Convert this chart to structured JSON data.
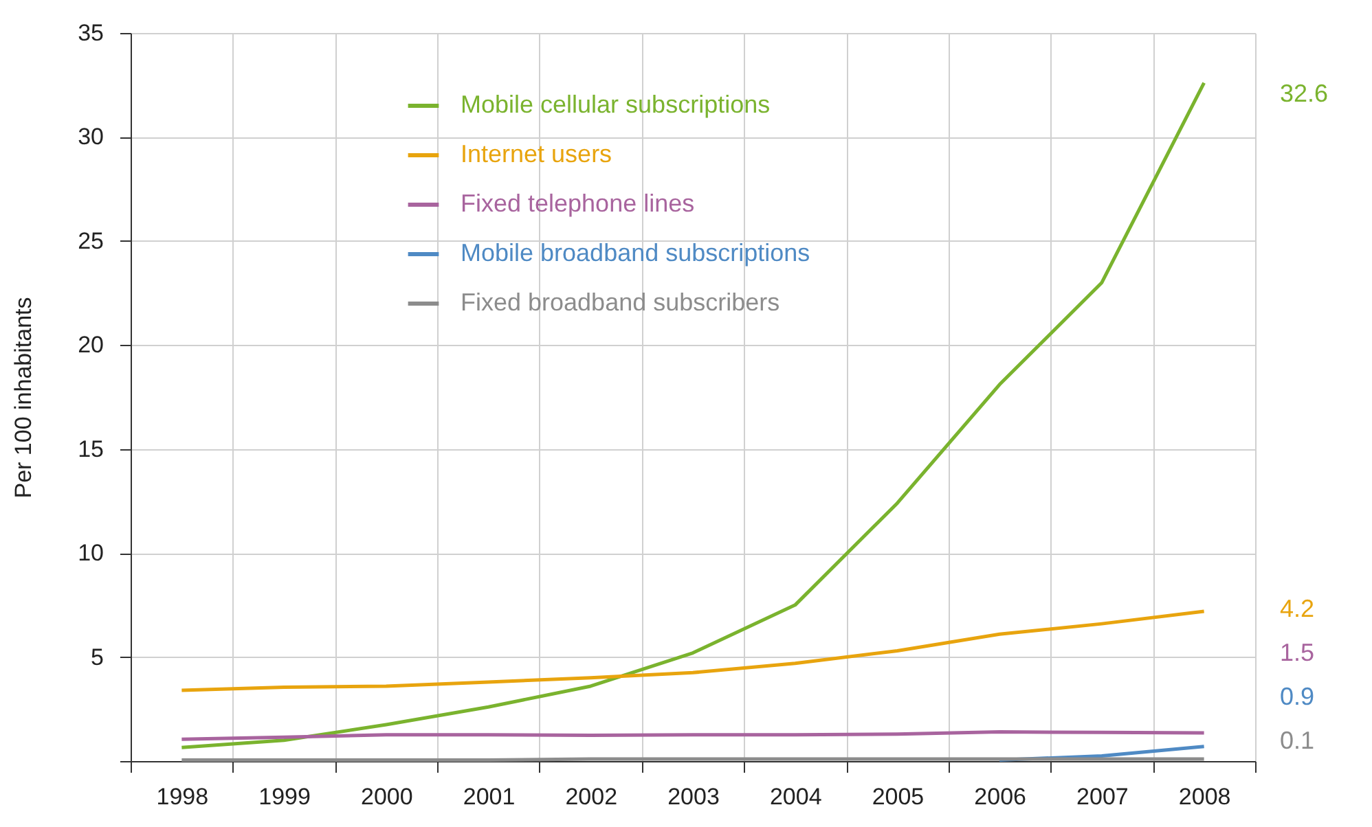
{
  "chart_data": {
    "type": "line",
    "ylabel": "Per 100 inhabitants",
    "categories": [
      "1998",
      "1999",
      "2000",
      "2001",
      "2002",
      "2003",
      "2004",
      "2005",
      "2006",
      "2007",
      "2008"
    ],
    "series": [
      {
        "name": "Mobile cellular subscriptions",
        "color": "#7ab32e",
        "values": [
          0.65,
          1.0,
          1.75,
          2.6,
          3.6,
          5.2,
          7.5,
          12.4,
          18.1,
          23.0,
          32.6
        ]
      },
      {
        "name": "Internet users",
        "color": "#e8a40e",
        "values": [
          3.4,
          3.55,
          3.6,
          3.8,
          4.0,
          4.25,
          4.7,
          5.3,
          6.1,
          6.6,
          7.2
        ]
      },
      {
        "name": "Fixed telephone lines",
        "color": "#a8649e",
        "values": [
          1.05,
          1.15,
          1.26,
          1.26,
          1.24,
          1.26,
          1.26,
          1.3,
          1.4,
          1.38,
          1.35
        ]
      },
      {
        "name": "Mobile broadband subscriptions",
        "color": "#4f8ac4",
        "values": [
          null,
          null,
          null,
          null,
          null,
          null,
          null,
          null,
          0.05,
          0.25,
          0.7
        ]
      },
      {
        "name": "Fixed broadband subscribers",
        "color": "#8c8c8c",
        "values": [
          0.05,
          0.05,
          0.05,
          0.05,
          0.1,
          0.1,
          0.1,
          0.1,
          0.1,
          0.1,
          0.1
        ]
      }
    ],
    "ylim": [
      0,
      35
    ],
    "yticks": [
      {
        "value": 0,
        "label": null
      },
      5,
      10,
      15,
      20,
      25,
      30,
      35
    ],
    "grid": true,
    "legend": "top",
    "annotations": [
      "32.6",
      "4.2",
      "1.5",
      "0.9",
      "0.1"
    ]
  }
}
